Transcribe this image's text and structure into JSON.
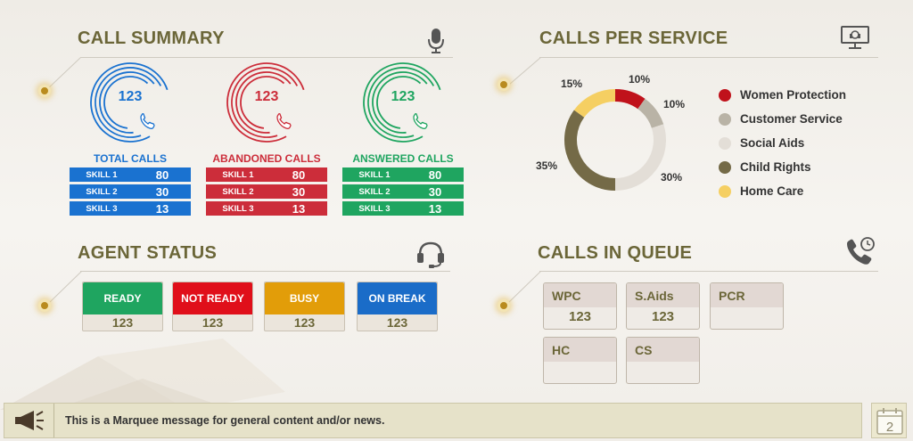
{
  "colors": {
    "title": "#6b6638",
    "blue": "#1a72d0",
    "red": "#cc2d3a",
    "green": "#1fa560",
    "accent_dot": "#b98b1e"
  },
  "call_summary": {
    "title": "CALL SUMMARY",
    "icon": "microphone-icon",
    "columns": [
      {
        "title": "TOTAL CALLS",
        "value": "123",
        "color": "#1a72d0",
        "skills": [
          {
            "label": "SKILL 1",
            "value": "80"
          },
          {
            "label": "SKILL 2",
            "value": "30"
          },
          {
            "label": "SKILL 3",
            "value": "13"
          }
        ]
      },
      {
        "title": "ABANDONED CALLS",
        "value": "123",
        "color": "#cc2d3a",
        "skills": [
          {
            "label": "SKILL 1",
            "value": "80"
          },
          {
            "label": "SKILL 2",
            "value": "30"
          },
          {
            "label": "SKILL 3",
            "value": "13"
          }
        ]
      },
      {
        "title": "ANSWERED CALLS",
        "value": "123",
        "color": "#1fa560",
        "skills": [
          {
            "label": "SKILL 1",
            "value": "80"
          },
          {
            "label": "SKILL 2",
            "value": "30"
          },
          {
            "label": "SKILL 3",
            "value": "13"
          }
        ]
      }
    ]
  },
  "calls_per_service": {
    "title": "CALLS PER SERVICE",
    "icon": "monitor-headset-icon",
    "slices": [
      {
        "name": "Women Protection",
        "percent": 10,
        "label": "10%",
        "color": "#c0121b"
      },
      {
        "name": "Customer Service",
        "percent": 10,
        "label": "10%",
        "color": "#b9b3a6"
      },
      {
        "name": "Social Aids",
        "percent": 30,
        "label": "30%",
        "color": "#e3ded7"
      },
      {
        "name": "Child Rights",
        "percent": 35,
        "label": "35%",
        "color": "#746a47"
      },
      {
        "name": "Home Care",
        "percent": 15,
        "label": "15%",
        "color": "#f5cf62"
      }
    ]
  },
  "agent_status": {
    "title": "AGENT STATUS",
    "icon": "headset-icon",
    "cards": [
      {
        "label": "READY",
        "value": "123",
        "color": "#1fa560"
      },
      {
        "label": "NOT READY",
        "value": "123",
        "color": "#e00f1a"
      },
      {
        "label": "BUSY",
        "value": "123",
        "color": "#e29d09"
      },
      {
        "label": "ON BREAK",
        "value": "123",
        "color": "#1a6cc8"
      }
    ]
  },
  "calls_in_queue": {
    "title": "CALLS IN QUEUE",
    "icon": "phone-clock-icon",
    "items": [
      {
        "label": "WPC",
        "value": "123"
      },
      {
        "label": "S.Aids",
        "value": "123"
      },
      {
        "label": "PCR",
        "value": ""
      },
      {
        "label": "HC",
        "value": ""
      },
      {
        "label": "CS",
        "value": ""
      }
    ]
  },
  "marquee": {
    "icon": "megaphone-icon",
    "text": "This is a Marquee message for general content and/or news."
  },
  "calendar": {
    "icon": "calendar-icon",
    "day": "2"
  }
}
